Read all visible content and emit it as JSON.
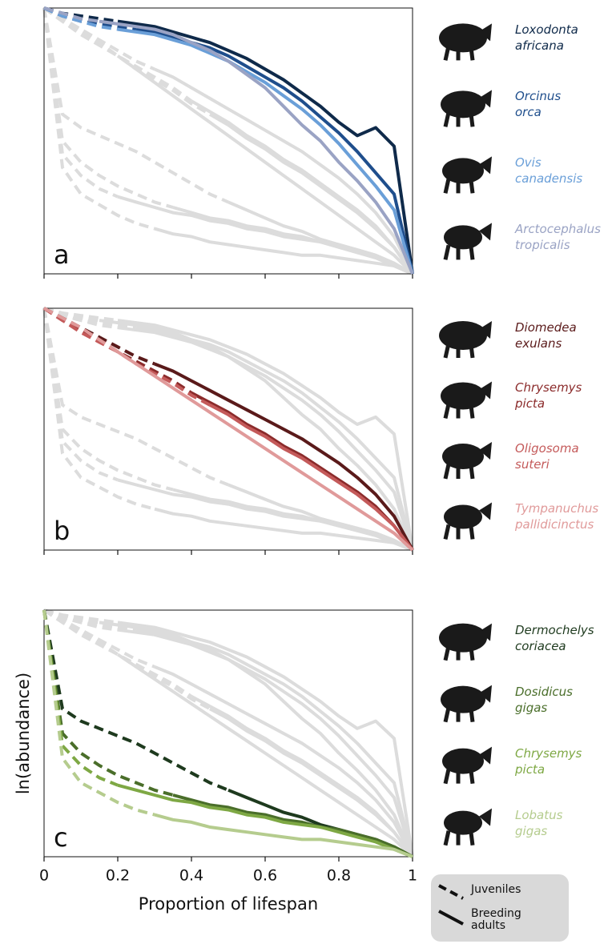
{
  "chart_data": [
    {
      "type": "line",
      "panel": "a",
      "xlim": [
        0,
        1
      ],
      "ylim": [
        0,
        1
      ],
      "xticks": [
        0,
        0.2,
        0.4,
        0.6,
        0.8,
        1
      ],
      "show_tick_labels": false,
      "x": [
        0,
        0.05,
        0.1,
        0.15,
        0.2,
        0.25,
        0.3,
        0.35,
        0.4,
        0.45,
        0.5,
        0.55,
        0.6,
        0.65,
        0.7,
        0.75,
        0.8,
        0.85,
        0.9,
        0.95,
        1
      ],
      "series": [
        {
          "name": "Loxodonta africana",
          "color": "#0f2a4a",
          "adult_from": 0.2,
          "values": [
            1,
            0.98,
            0.97,
            0.96,
            0.95,
            0.94,
            0.93,
            0.91,
            0.89,
            0.87,
            0.84,
            0.81,
            0.77,
            0.73,
            0.68,
            0.63,
            0.57,
            0.52,
            0.55,
            0.48,
            0
          ]
        },
        {
          "name": "Orcinus orca",
          "color": "#1f4e8c",
          "adult_from": 0.25,
          "values": [
            1,
            0.97,
            0.95,
            0.94,
            0.93,
            0.92,
            0.91,
            0.89,
            0.87,
            0.85,
            0.82,
            0.78,
            0.74,
            0.7,
            0.65,
            0.59,
            0.53,
            0.46,
            0.38,
            0.3,
            0
          ]
        },
        {
          "name": "Ovis canadensis",
          "color": "#6a9fd8",
          "adult_from": 0.2,
          "values": [
            1,
            0.97,
            0.95,
            0.93,
            0.92,
            0.91,
            0.9,
            0.88,
            0.86,
            0.83,
            0.8,
            0.76,
            0.72,
            0.67,
            0.62,
            0.56,
            0.49,
            0.41,
            0.33,
            0.24,
            0
          ]
        },
        {
          "name": "Arctocephalus tropicalis",
          "color": "#9aa3c4",
          "adult_from": 0.15,
          "values": [
            1,
            0.98,
            0.96,
            0.95,
            0.94,
            0.93,
            0.92,
            0.9,
            0.87,
            0.84,
            0.8,
            0.75,
            0.7,
            0.63,
            0.56,
            0.5,
            0.42,
            0.35,
            0.27,
            0.17,
            0
          ]
        }
      ]
    },
    {
      "type": "line",
      "panel": "b",
      "xlim": [
        0,
        1
      ],
      "ylim": [
        0,
        1
      ],
      "xticks": [
        0,
        0.2,
        0.4,
        0.6,
        0.8,
        1
      ],
      "show_tick_labels": false,
      "x": [
        0,
        0.05,
        0.1,
        0.15,
        0.2,
        0.25,
        0.3,
        0.35,
        0.4,
        0.45,
        0.5,
        0.55,
        0.6,
        0.65,
        0.7,
        0.75,
        0.8,
        0.85,
        0.9,
        0.95,
        1
      ],
      "series": [
        {
          "name": "Diomedea exulans",
          "color": "#5a1a1a",
          "adult_from": 0.3,
          "values": [
            1,
            0.96,
            0.92,
            0.88,
            0.84,
            0.8,
            0.77,
            0.74,
            0.7,
            0.66,
            0.62,
            0.58,
            0.54,
            0.5,
            0.46,
            0.41,
            0.36,
            0.3,
            0.23,
            0.14,
            0
          ]
        },
        {
          "name": "Chrysemys picta",
          "color": "#8b2b2b",
          "adult_from": 0.4,
          "values": [
            1,
            0.95,
            0.91,
            0.87,
            0.82,
            0.78,
            0.74,
            0.7,
            0.65,
            0.61,
            0.57,
            0.52,
            0.48,
            0.43,
            0.39,
            0.34,
            0.29,
            0.24,
            0.18,
            0.1,
            0
          ]
        },
        {
          "name": "Oligosoma suteri",
          "color": "#c45a5a",
          "adult_from": 0.45,
          "values": [
            1,
            0.95,
            0.9,
            0.86,
            0.82,
            0.77,
            0.73,
            0.69,
            0.64,
            0.6,
            0.56,
            0.51,
            0.47,
            0.42,
            0.38,
            0.33,
            0.28,
            0.23,
            0.17,
            0.1,
            0
          ]
        },
        {
          "name": "Tympanuchus pallidicinctus",
          "color": "#e09a9a",
          "adult_from": 0.2,
          "values": [
            1,
            0.96,
            0.92,
            0.87,
            0.82,
            0.77,
            0.72,
            0.67,
            0.62,
            0.57,
            0.52,
            0.47,
            0.42,
            0.37,
            0.32,
            0.27,
            0.22,
            0.17,
            0.12,
            0.07,
            0
          ]
        }
      ]
    },
    {
      "type": "line",
      "panel": "c",
      "xlim": [
        0,
        1
      ],
      "ylim": [
        0,
        1
      ],
      "xticks": [
        0,
        0.2,
        0.4,
        0.6,
        0.8,
        1
      ],
      "show_tick_labels": true,
      "xlabel": "Proportion of lifespan",
      "ylabel": "ln(abundance)",
      "x": [
        0,
        0.05,
        0.1,
        0.15,
        0.2,
        0.25,
        0.3,
        0.35,
        0.4,
        0.45,
        0.5,
        0.55,
        0.6,
        0.65,
        0.7,
        0.75,
        0.8,
        0.85,
        0.9,
        0.95,
        1
      ],
      "series": [
        {
          "name": "Dermochelys coriacea",
          "color": "#1e3a1e",
          "adult_from": 0.5,
          "values": [
            1,
            0.6,
            0.55,
            0.52,
            0.49,
            0.46,
            0.42,
            0.38,
            0.34,
            0.3,
            0.27,
            0.24,
            0.21,
            0.18,
            0.16,
            0.13,
            0.11,
            0.09,
            0.07,
            0.04,
            0
          ]
        },
        {
          "name": "Dosidicus gigas",
          "color": "#4a6e2a",
          "adult_from": 0.35,
          "values": [
            1,
            0.5,
            0.42,
            0.37,
            0.33,
            0.3,
            0.27,
            0.25,
            0.23,
            0.21,
            0.2,
            0.18,
            0.17,
            0.15,
            0.14,
            0.12,
            0.11,
            0.09,
            0.07,
            0.04,
            0
          ]
        },
        {
          "name": "Chrysemys picta",
          "color": "#7ea844",
          "adult_from": 0.2,
          "values": [
            1,
            0.45,
            0.37,
            0.32,
            0.29,
            0.27,
            0.25,
            0.23,
            0.22,
            0.2,
            0.19,
            0.17,
            0.16,
            0.14,
            0.13,
            0.12,
            0.1,
            0.08,
            0.06,
            0.03,
            0
          ]
        },
        {
          "name": "Lobatus gigas",
          "color": "#b5cc8e",
          "adult_from": 0.3,
          "values": [
            1,
            0.4,
            0.3,
            0.26,
            0.22,
            0.19,
            0.17,
            0.15,
            0.14,
            0.12,
            0.11,
            0.1,
            0.09,
            0.08,
            0.07,
            0.07,
            0.06,
            0.05,
            0.04,
            0.03,
            0
          ]
        }
      ]
    }
  ],
  "legend": {
    "juveniles": "Juveniles",
    "adults": "Breeding adults"
  }
}
